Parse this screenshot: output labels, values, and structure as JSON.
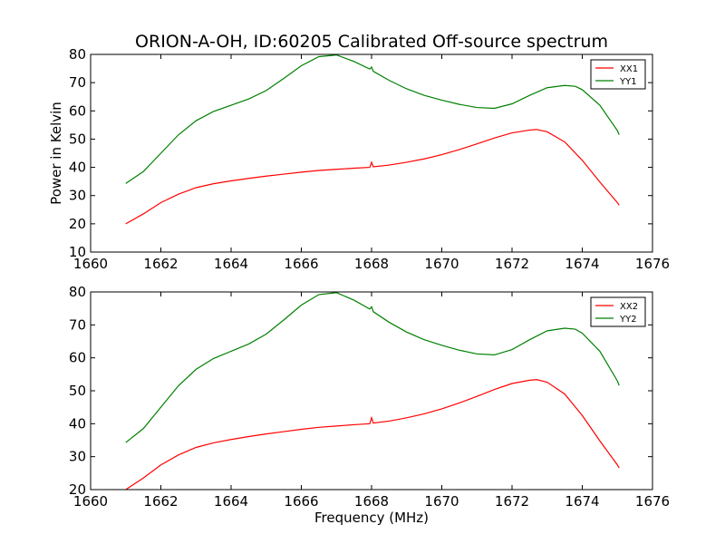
{
  "chart_data": [
    {
      "type": "line",
      "title": "ORION-A-OH, ID:60205 Calibrated Off-source spectrum",
      "xlabel": "",
      "ylabel": "Power in Kelvin",
      "xlim": [
        1660,
        1676
      ],
      "ylim": [
        10,
        80
      ],
      "xticks": [
        1660,
        1662,
        1664,
        1666,
        1668,
        1670,
        1672,
        1674,
        1676
      ],
      "yticks": [
        10,
        20,
        30,
        40,
        50,
        60,
        70,
        80
      ],
      "grid": false,
      "legend_position": "top-right",
      "series": [
        {
          "name": "XX1",
          "color": "#ff0000",
          "x": [
            1661.0,
            1661.5,
            1662.0,
            1662.5,
            1663.0,
            1663.5,
            1664.0,
            1664.5,
            1665.0,
            1665.5,
            1666.0,
            1666.5,
            1667.0,
            1667.5,
            1667.95,
            1668.0,
            1668.05,
            1668.5,
            1669.0,
            1669.5,
            1670.0,
            1670.5,
            1671.0,
            1671.5,
            1672.0,
            1672.5,
            1672.7,
            1673.0,
            1673.5,
            1674.0,
            1674.5,
            1675.0,
            1675.05
          ],
          "y": [
            20.0,
            23.5,
            27.5,
            30.5,
            32.8,
            34.2,
            35.2,
            36.1,
            36.9,
            37.6,
            38.3,
            38.9,
            39.3,
            39.7,
            40.0,
            41.8,
            40.2,
            40.8,
            41.8,
            43.0,
            44.5,
            46.3,
            48.3,
            50.4,
            52.2,
            53.2,
            53.4,
            52.6,
            49.0,
            42.5,
            34.8,
            27.5,
            26.6
          ]
        },
        {
          "name": "YY1",
          "color": "#008000",
          "x": [
            1661.0,
            1661.5,
            1662.0,
            1662.5,
            1663.0,
            1663.5,
            1664.0,
            1664.5,
            1665.0,
            1665.5,
            1666.0,
            1666.5,
            1667.0,
            1667.5,
            1667.95,
            1668.0,
            1668.05,
            1668.5,
            1669.0,
            1669.5,
            1670.0,
            1670.5,
            1671.0,
            1671.5,
            1672.0,
            1672.5,
            1673.0,
            1673.5,
            1673.8,
            1674.0,
            1674.5,
            1675.0,
            1675.05
          ],
          "y": [
            34.3,
            38.5,
            45.0,
            51.5,
            56.5,
            59.8,
            62.0,
            64.2,
            67.2,
            71.5,
            76.0,
            79.2,
            79.8,
            77.5,
            74.8,
            75.5,
            74.0,
            70.8,
            67.8,
            65.5,
            63.8,
            62.3,
            61.2,
            60.9,
            62.5,
            65.5,
            68.2,
            69.0,
            68.7,
            67.5,
            62.0,
            53.0,
            51.6
          ]
        }
      ]
    },
    {
      "type": "line",
      "title": "",
      "xlabel": "Frequency (MHz)",
      "ylabel": "",
      "xlim": [
        1660,
        1676
      ],
      "ylim": [
        20,
        80
      ],
      "xticks": [
        1660,
        1662,
        1664,
        1666,
        1668,
        1670,
        1672,
        1674,
        1676
      ],
      "yticks": [
        20,
        30,
        40,
        50,
        60,
        70,
        80
      ],
      "grid": false,
      "legend_position": "top-right",
      "series": [
        {
          "name": "XX2",
          "color": "#ff0000",
          "x": [
            1661.0,
            1661.5,
            1662.0,
            1662.5,
            1663.0,
            1663.5,
            1664.0,
            1664.5,
            1665.0,
            1665.5,
            1666.0,
            1666.5,
            1667.0,
            1667.5,
            1667.95,
            1668.0,
            1668.05,
            1668.5,
            1669.0,
            1669.5,
            1670.0,
            1670.5,
            1671.0,
            1671.5,
            1672.0,
            1672.5,
            1672.7,
            1673.0,
            1673.5,
            1674.0,
            1674.5,
            1675.0,
            1675.05
          ],
          "y": [
            20.0,
            23.5,
            27.5,
            30.5,
            32.8,
            34.2,
            35.2,
            36.1,
            36.9,
            37.6,
            38.3,
            38.9,
            39.3,
            39.7,
            40.0,
            41.8,
            40.2,
            40.8,
            41.8,
            43.0,
            44.5,
            46.3,
            48.3,
            50.4,
            52.2,
            53.2,
            53.4,
            52.6,
            49.0,
            42.5,
            34.8,
            27.5,
            26.6
          ]
        },
        {
          "name": "YY2",
          "color": "#008000",
          "x": [
            1661.0,
            1661.5,
            1662.0,
            1662.5,
            1663.0,
            1663.5,
            1664.0,
            1664.5,
            1665.0,
            1665.5,
            1666.0,
            1666.5,
            1667.0,
            1667.5,
            1667.95,
            1668.0,
            1668.05,
            1668.5,
            1669.0,
            1669.5,
            1670.0,
            1670.5,
            1671.0,
            1671.5,
            1672.0,
            1672.5,
            1673.0,
            1673.5,
            1673.8,
            1674.0,
            1674.5,
            1675.0,
            1675.05
          ],
          "y": [
            34.3,
            38.5,
            45.0,
            51.5,
            56.5,
            59.8,
            62.0,
            64.2,
            67.2,
            71.5,
            76.0,
            79.2,
            79.8,
            77.5,
            74.8,
            75.5,
            74.0,
            70.8,
            67.8,
            65.5,
            63.8,
            62.3,
            61.2,
            60.9,
            62.5,
            65.5,
            68.2,
            69.0,
            68.7,
            67.5,
            62.0,
            53.0,
            51.6
          ]
        }
      ]
    }
  ]
}
